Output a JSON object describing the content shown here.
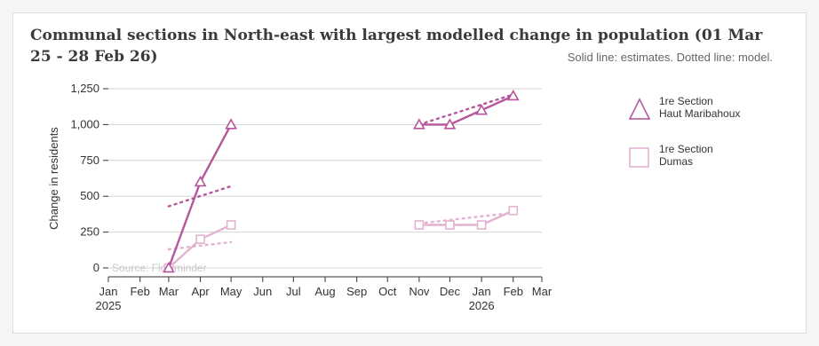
{
  "chart_data": {
    "type": "line",
    "title": "Communal sections in North-east with largest modelled change in population (01 Mar 25 - 28 Feb 26)",
    "subtitle": "Solid line: estimates. Dotted line: model.",
    "ylabel": "Change in residents",
    "source": "Source: Flowminder",
    "ylim": [
      0,
      1250
    ],
    "yticks": [
      0,
      250,
      500,
      750,
      1000,
      1250
    ],
    "ytick_labels": [
      "0",
      "250",
      "500",
      "750",
      "1,000",
      "1,250"
    ],
    "xlim": [
      "2025-01-01",
      "2026-03-01"
    ],
    "xticks": [
      {
        "date": "2025-01-01",
        "label": "Jan",
        "year": "2025"
      },
      {
        "date": "2025-02-01",
        "label": "Feb",
        "year": ""
      },
      {
        "date": "2025-03-01",
        "label": "Mar",
        "year": ""
      },
      {
        "date": "2025-04-01",
        "label": "Apr",
        "year": ""
      },
      {
        "date": "2025-05-01",
        "label": "May",
        "year": ""
      },
      {
        "date": "2025-06-01",
        "label": "Jun",
        "year": ""
      },
      {
        "date": "2025-07-01",
        "label": "Jul",
        "year": ""
      },
      {
        "date": "2025-08-01",
        "label": "Aug",
        "year": ""
      },
      {
        "date": "2025-09-01",
        "label": "Sep",
        "year": ""
      },
      {
        "date": "2025-10-01",
        "label": "Oct",
        "year": ""
      },
      {
        "date": "2025-11-01",
        "label": "Nov",
        "year": ""
      },
      {
        "date": "2025-12-01",
        "label": "Dec",
        "year": ""
      },
      {
        "date": "2026-01-01",
        "label": "Jan",
        "year": "2026"
      },
      {
        "date": "2026-02-01",
        "label": "Feb",
        "year": ""
      },
      {
        "date": "2026-03-01",
        "label": "Mar",
        "year": ""
      }
    ],
    "grid": true,
    "legend_position": "right",
    "series": [
      {
        "name": "1re Section Haut Maribahoux",
        "legend_lines": [
          "1re Section",
          "Haut Maribahoux"
        ],
        "color": "#b5579a",
        "marker": "triangle",
        "estimates": [
          {
            "segment": 0,
            "x": "2025-03-01",
            "y": 0
          },
          {
            "segment": 0,
            "x": "2025-04-01",
            "y": 600
          },
          {
            "segment": 0,
            "x": "2025-05-01",
            "y": 1000
          },
          {
            "segment": 1,
            "x": "2025-11-01",
            "y": 1000
          },
          {
            "segment": 1,
            "x": "2025-12-01",
            "y": 1000
          },
          {
            "segment": 1,
            "x": "2026-01-01",
            "y": 1100
          },
          {
            "segment": 1,
            "x": "2026-02-01",
            "y": 1200
          }
        ],
        "model": [
          {
            "segment": 0,
            "x": "2025-03-01",
            "y": 430
          },
          {
            "segment": 0,
            "x": "2025-05-01",
            "y": 570
          },
          {
            "segment": 1,
            "x": "2025-11-01",
            "y": 1000
          },
          {
            "segment": 1,
            "x": "2026-02-01",
            "y": 1210
          }
        ]
      },
      {
        "name": "1re Section Dumas",
        "legend_lines": [
          "1re Section",
          "Dumas"
        ],
        "color": "#e2b3d0",
        "marker": "square",
        "estimates": [
          {
            "segment": 0,
            "x": "2025-03-01",
            "y": 0
          },
          {
            "segment": 0,
            "x": "2025-04-01",
            "y": 200
          },
          {
            "segment": 0,
            "x": "2025-05-01",
            "y": 300
          },
          {
            "segment": 1,
            "x": "2025-11-01",
            "y": 300
          },
          {
            "segment": 1,
            "x": "2025-12-01",
            "y": 300
          },
          {
            "segment": 1,
            "x": "2026-01-01",
            "y": 300
          },
          {
            "segment": 1,
            "x": "2026-02-01",
            "y": 400
          }
        ],
        "model": [
          {
            "segment": 0,
            "x": "2025-03-01",
            "y": 130
          },
          {
            "segment": 0,
            "x": "2025-05-01",
            "y": 180
          },
          {
            "segment": 1,
            "x": "2025-11-01",
            "y": 310
          },
          {
            "segment": 1,
            "x": "2026-02-01",
            "y": 385
          }
        ]
      }
    ]
  }
}
